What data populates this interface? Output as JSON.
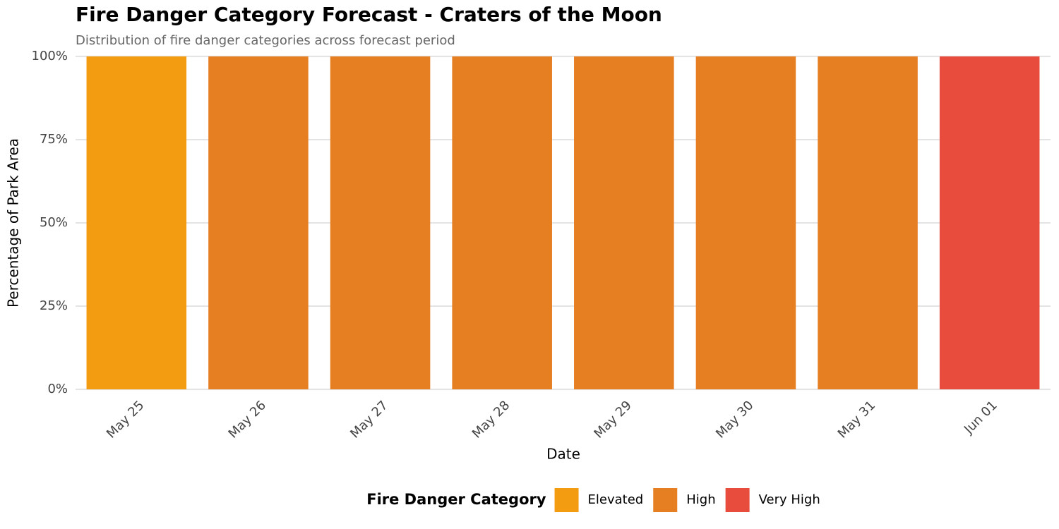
{
  "chart_data": {
    "type": "stacked_bar",
    "title": "Fire Danger Category Forecast - Craters of the Moon",
    "subtitle": "Distribution of fire danger categories across forecast period",
    "x_label": "Date",
    "y_label": "Percentage of Park Area",
    "legend_title": "Fire Danger Category",
    "categories": [
      "May 25",
      "May 26",
      "May 27",
      "May 28",
      "May 29",
      "May 30",
      "May 31",
      "Jun 01"
    ],
    "series": [
      {
        "name": "Elevated",
        "color": "#f39c12",
        "values": [
          100,
          0,
          0,
          0,
          0,
          0,
          0,
          0
        ]
      },
      {
        "name": "High",
        "color": "#e67e22",
        "values": [
          0,
          100,
          100,
          100,
          100,
          100,
          100,
          0
        ]
      },
      {
        "name": "Very High",
        "color": "#e74c3c",
        "values": [
          0,
          0,
          0,
          0,
          0,
          0,
          0,
          100
        ]
      }
    ],
    "ylim": [
      0,
      100
    ],
    "yticks": [
      {
        "value": 0,
        "label": "0%"
      },
      {
        "value": 25,
        "label": "25%"
      },
      {
        "value": 50,
        "label": "50%"
      },
      {
        "value": 75,
        "label": "75%"
      },
      {
        "value": 100,
        "label": "100%"
      }
    ],
    "grid": true,
    "legend_position": "bottom"
  }
}
